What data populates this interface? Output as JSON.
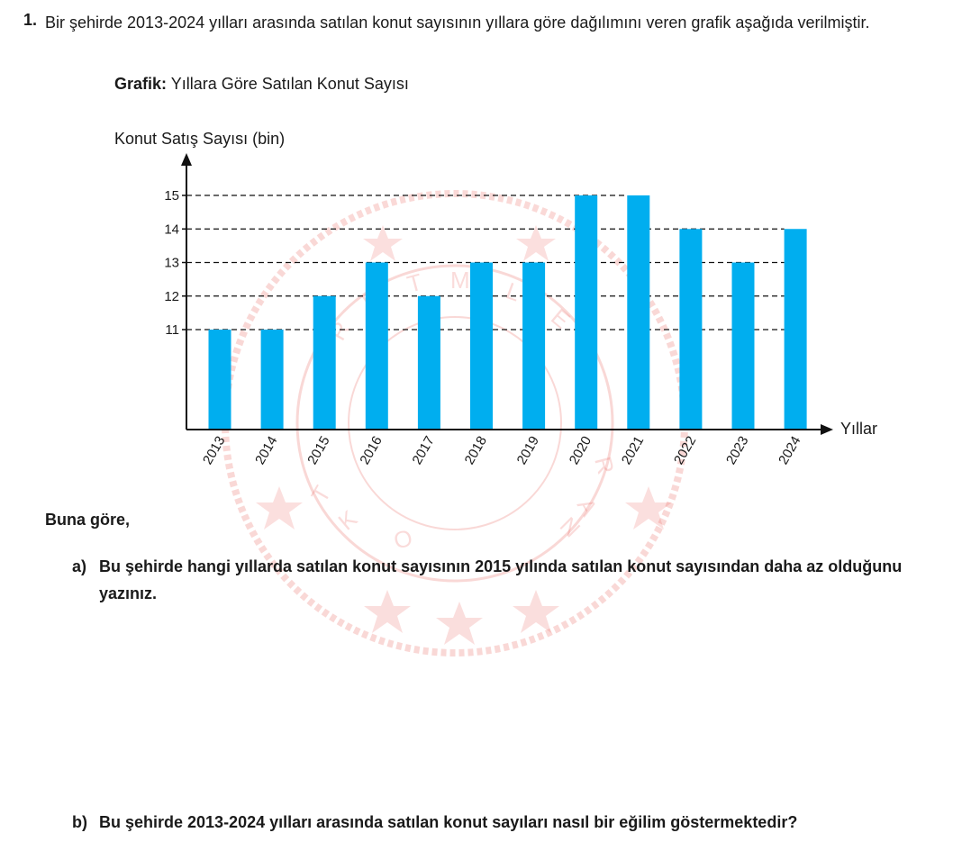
{
  "question": {
    "number": "1.",
    "text": "Bir şehirde 2013-2024 yılları arasında satılan konut sayısının yıllara göre dağılımını veren grafik aşağıda verilmiştir."
  },
  "chart_caption": {
    "label": "Grafik:",
    "text": "Yıllara Göre Satılan Konut Sayısı"
  },
  "chart_data": {
    "type": "bar",
    "ylabel": "Konut Satış Sayısı (bin)",
    "xlabel": "Yıllar",
    "categories": [
      "2013",
      "2014",
      "2015",
      "2016",
      "2017",
      "2018",
      "2019",
      "2020",
      "2021",
      "2022",
      "2023",
      "2024"
    ],
    "values": [
      11,
      11,
      12,
      13,
      12,
      13,
      13,
      15,
      15,
      14,
      13,
      14
    ],
    "yticks": [
      11,
      12,
      13,
      14,
      15
    ],
    "bar_color": "#00aeef",
    "grid": "dashed reference lines at each tick"
  },
  "prompt": "Buna göre,",
  "parts": [
    {
      "label": "a)",
      "text": "Bu şehirde hangi yıllarda satılan konut sayısının 2015 yılında satılan konut sayısından daha az olduğunu yazınız."
    },
    {
      "label": "b)",
      "text": "Bu şehirde 2013-2024 yılları arasında satılan konut sayıları nasıl bir eğilim göstermektedir?"
    }
  ],
  "watermark": {
    "icon": "ministry-seal-watermark-icon",
    "color": "#e8504a"
  }
}
